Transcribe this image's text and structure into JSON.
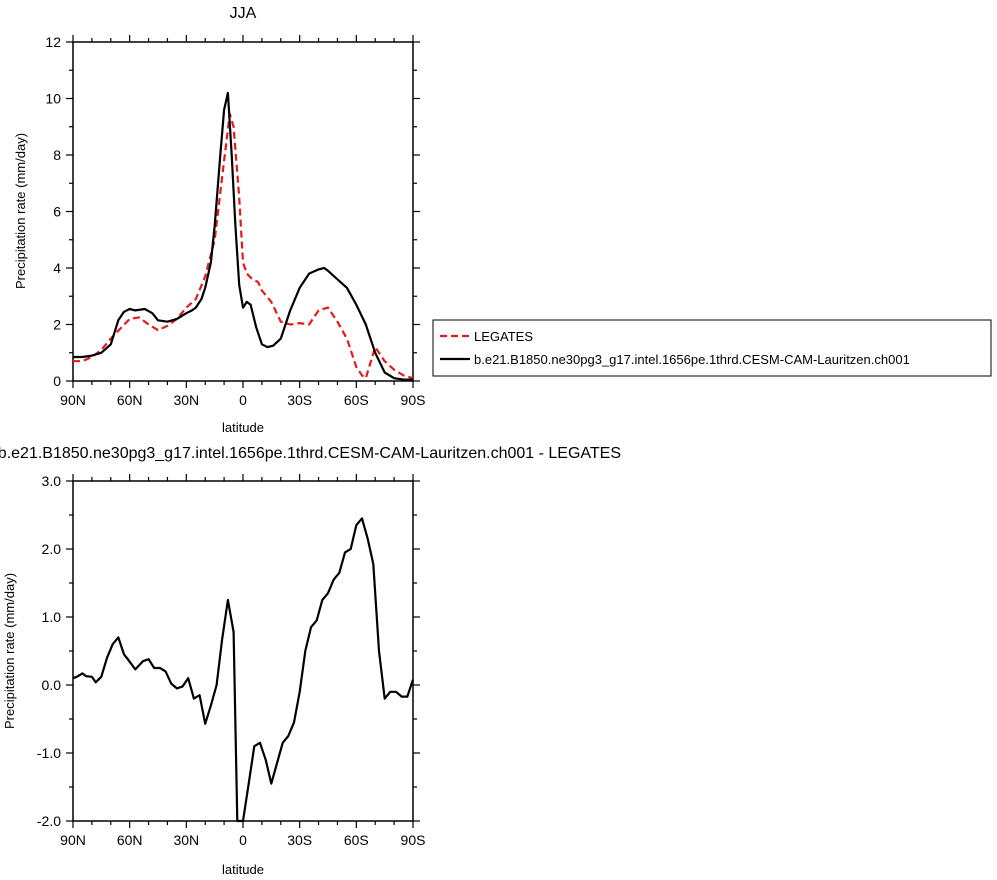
{
  "chart_data": [
    {
      "type": "line",
      "title": "JJA",
      "xlabel": "latitude",
      "ylabel": "Precipitation rate (mm/day)",
      "xlim": [
        90,
        -90
      ],
      "ylim": [
        0,
        12
      ],
      "xticks": [
        90,
        60,
        30,
        0,
        -30,
        -60,
        -90
      ],
      "xtick_labels": [
        "90N",
        "60N",
        "30N",
        "0",
        "30S",
        "60S",
        "90S"
      ],
      "yticks": [
        0,
        2,
        4,
        6,
        8,
        10,
        12
      ],
      "ytick_labels": [
        "0",
        "2",
        "4",
        "6",
        "8",
        "10",
        "12"
      ],
      "legend_position": "right",
      "series": [
        {
          "name": "LEGATES",
          "color": "#e41a1c",
          "style": "dashed",
          "x": [
            90,
            85,
            80,
            75,
            70,
            65,
            60,
            55,
            50,
            45,
            40,
            35,
            30,
            25,
            20,
            15,
            10,
            7,
            5,
            2,
            0,
            -2,
            -5,
            -8,
            -10,
            -15,
            -20,
            -25,
            -30,
            -35,
            -40,
            -45,
            -50,
            -55,
            -60,
            -63,
            -65,
            -70,
            -75,
            -80,
            -85,
            -90
          ],
          "y": [
            0.7,
            0.7,
            0.85,
            1.1,
            1.5,
            1.85,
            2.2,
            2.25,
            2.0,
            1.8,
            1.95,
            2.2,
            2.6,
            2.9,
            3.7,
            5.0,
            7.8,
            9.45,
            9.0,
            6.5,
            4.2,
            3.8,
            3.6,
            3.5,
            3.2,
            2.8,
            2.1,
            2.0,
            2.05,
            2.0,
            2.5,
            2.6,
            2.1,
            1.5,
            0.5,
            0.2,
            0.1,
            1.2,
            0.7,
            0.4,
            0.2,
            0.1
          ]
        },
        {
          "name": "b.e21.B1850.ne30pg3_g17.intel.1656pe.1thrd.CESM-CAM-Lauritzen.ch001",
          "color": "#000000",
          "style": "solid",
          "x": [
            90,
            85,
            80,
            75,
            70,
            66,
            63,
            60,
            57,
            52,
            48,
            45,
            40,
            35,
            30,
            27,
            25,
            22,
            20,
            17,
            15,
            12,
            10,
            8,
            6,
            4,
            2,
            0,
            -2,
            -4,
            -7,
            -10,
            -13,
            -16,
            -20,
            -25,
            -30,
            -35,
            -40,
            -43,
            -45,
            -50,
            -55,
            -60,
            -65,
            -70,
            -75,
            -80,
            -85,
            -90
          ],
          "y": [
            0.85,
            0.85,
            0.9,
            1.0,
            1.3,
            2.15,
            2.45,
            2.55,
            2.5,
            2.55,
            2.4,
            2.15,
            2.1,
            2.2,
            2.4,
            2.5,
            2.6,
            2.9,
            3.3,
            4.2,
            5.5,
            8.0,
            9.6,
            10.2,
            8.0,
            5.5,
            3.4,
            2.6,
            2.8,
            2.7,
            1.9,
            1.3,
            1.2,
            1.25,
            1.5,
            2.5,
            3.3,
            3.8,
            3.95,
            4.0,
            3.9,
            3.6,
            3.3,
            2.7,
            2.0,
            1.0,
            0.3,
            0.1,
            0.05,
            0.05
          ]
        }
      ]
    },
    {
      "type": "line",
      "title": "b.e21.B1850.ne30pg3_g17.intel.1656pe.1thrd.CESM-CAM-Lauritzen.ch001 - LEGATES",
      "xlabel": "latitude",
      "ylabel": "Precipitation rate (mm/day)",
      "xlim": [
        90,
        -90
      ],
      "ylim": [
        -2.0,
        3.0
      ],
      "xticks": [
        90,
        60,
        30,
        0,
        -30,
        -60,
        -90
      ],
      "xtick_labels": [
        "90N",
        "60N",
        "30N",
        "0",
        "30S",
        "60S",
        "90S"
      ],
      "yticks": [
        -2.0,
        -1.0,
        0.0,
        1.0,
        2.0,
        3.0
      ],
      "ytick_labels": [
        "-2.0",
        "-1.0",
        "0.0",
        "1.0",
        "2.0",
        "3.0"
      ],
      "series": [
        {
          "color": "#000000",
          "style": "solid",
          "x": [
            90,
            88,
            85,
            83,
            80,
            78,
            75,
            72,
            69,
            66,
            63,
            61,
            57,
            53,
            50,
            47,
            44,
            41,
            38,
            35,
            32,
            29,
            26,
            23,
            20,
            17,
            14,
            11,
            8,
            5,
            3,
            0,
            -3,
            -6,
            -9,
            -12,
            -15,
            -18,
            -21,
            -24,
            -27,
            -30,
            -33,
            -36,
            -39,
            -42,
            -45,
            -48,
            -51,
            -54,
            -57,
            -60,
            -63,
            -66,
            -69,
            -72,
            -75,
            -78,
            -81,
            -84,
            -87,
            -90
          ],
          "y": [
            0.1,
            0.12,
            0.17,
            0.13,
            0.12,
            0.04,
            0.12,
            0.4,
            0.6,
            0.7,
            0.45,
            0.38,
            0.23,
            0.35,
            0.38,
            0.25,
            0.25,
            0.2,
            0.02,
            -0.05,
            -0.02,
            0.1,
            -0.2,
            -0.15,
            -0.57,
            -0.3,
            0.0,
            0.68,
            1.25,
            0.78,
            -2.0,
            -2.0,
            -1.45,
            -0.9,
            -0.85,
            -1.1,
            -1.45,
            -1.15,
            -0.85,
            -0.75,
            -0.55,
            -0.1,
            0.5,
            0.85,
            0.95,
            1.25,
            1.35,
            1.55,
            1.65,
            1.95,
            2.0,
            2.35,
            2.45,
            2.15,
            1.78,
            0.5,
            -0.2,
            -0.1,
            -0.1,
            -0.17,
            -0.17,
            0.08
          ]
        }
      ]
    }
  ]
}
